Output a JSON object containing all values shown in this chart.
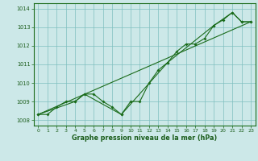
{
  "title": "Graphe pression niveau de la mer (hPa)",
  "bg_color": "#cce8e8",
  "plot_bg_color": "#cce8e8",
  "line_color": "#1a6b1a",
  "grid_color": "#7fbfbf",
  "text_color": "#1a5c1a",
  "xlim": [
    -0.5,
    23.5
  ],
  "ylim": [
    1007.7,
    1014.3
  ],
  "xticks": [
    0,
    1,
    2,
    3,
    4,
    5,
    6,
    7,
    8,
    9,
    10,
    11,
    12,
    13,
    14,
    15,
    16,
    17,
    18,
    19,
    20,
    21,
    22,
    23
  ],
  "yticks": [
    1008,
    1009,
    1010,
    1011,
    1012,
    1013,
    1014
  ],
  "series1_x": [
    0,
    1,
    2,
    3,
    4,
    5,
    6,
    7,
    8,
    9,
    10,
    11,
    12,
    13,
    14,
    15,
    16,
    17,
    18,
    19,
    20,
    21,
    22,
    23
  ],
  "series1_y": [
    1008.3,
    1008.3,
    1008.7,
    1009.0,
    1009.0,
    1009.4,
    1009.4,
    1009.0,
    1008.7,
    1008.3,
    1009.0,
    1009.0,
    1010.0,
    1010.7,
    1011.1,
    1011.7,
    1012.1,
    1012.1,
    1012.4,
    1013.1,
    1013.4,
    1013.8,
    1013.3,
    1013.3
  ],
  "series2_x": [
    0,
    4,
    5,
    9,
    14,
    19,
    21,
    22,
    23
  ],
  "series2_y": [
    1008.3,
    1009.0,
    1009.4,
    1008.3,
    1011.1,
    1013.1,
    1013.8,
    1013.3,
    1013.3
  ],
  "series3_x": [
    0,
    23
  ],
  "series3_y": [
    1008.3,
    1013.3
  ]
}
